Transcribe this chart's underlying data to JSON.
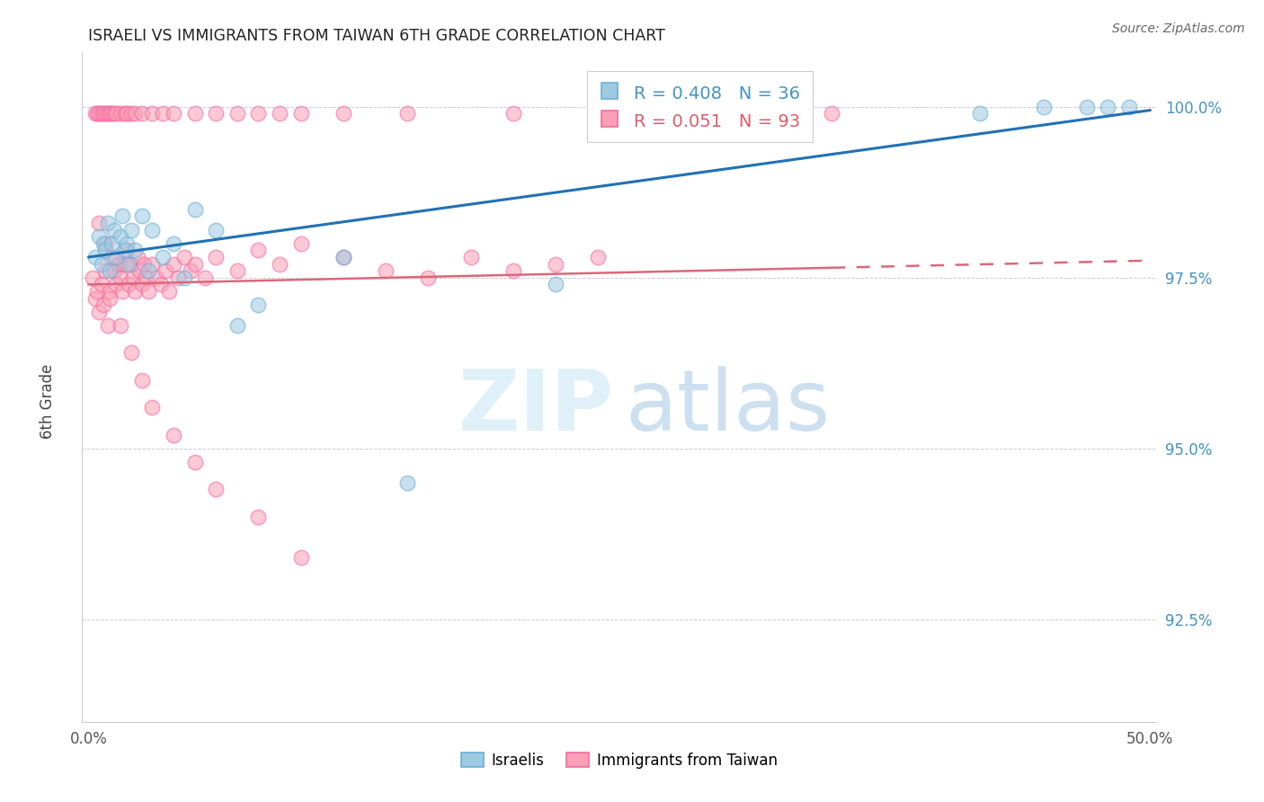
{
  "title": "ISRAELI VS IMMIGRANTS FROM TAIWAN 6TH GRADE CORRELATION CHART",
  "source": "Source: ZipAtlas.com",
  "ylabel": "6th Grade",
  "ytick_labels": [
    "100.0%",
    "97.5%",
    "95.0%",
    "92.5%"
  ],
  "ytick_values": [
    1.0,
    0.975,
    0.95,
    0.925
  ],
  "xmin": 0.0,
  "xmax": 0.5,
  "ymin": 0.91,
  "ymax": 1.008,
  "legend_blue_R": "0.408",
  "legend_blue_N": "36",
  "legend_pink_R": "0.051",
  "legend_pink_N": "93",
  "blue_scatter_color": "#9ecae1",
  "blue_edge_color": "#6baed6",
  "pink_scatter_color": "#fa9fb5",
  "pink_edge_color": "#f768a1",
  "blue_line_color": "#2171b5",
  "pink_line_color": "#d9697a",
  "grid_color": "#cccccc",
  "title_color": "#222222",
  "source_color": "#666666",
  "right_tick_color": "#4292c6",
  "legend_blue_text_color": "#4292c6",
  "legend_pink_text_color": "#e05a6a",
  "israelis_label": "Israelis",
  "taiwan_label": "Immigrants from Taiwan",
  "blue_points_x": [
    0.003,
    0.005,
    0.006,
    0.007,
    0.008,
    0.009,
    0.01,
    0.011,
    0.012,
    0.013,
    0.015,
    0.016,
    0.017,
    0.018,
    0.019,
    0.02,
    0.022,
    0.025,
    0.028,
    0.03,
    0.035,
    0.04,
    0.045,
    0.05,
    0.06,
    0.07,
    0.08,
    0.12,
    0.15,
    0.22,
    0.3,
    0.42,
    0.45,
    0.47,
    0.48,
    0.49
  ],
  "blue_points_y": [
    0.978,
    0.981,
    0.977,
    0.98,
    0.979,
    0.983,
    0.976,
    0.98,
    0.982,
    0.978,
    0.981,
    0.984,
    0.979,
    0.98,
    0.977,
    0.982,
    0.979,
    0.984,
    0.976,
    0.982,
    0.978,
    0.98,
    0.975,
    0.985,
    0.982,
    0.968,
    0.971,
    0.978,
    0.945,
    0.974,
    0.999,
    0.999,
    1.0,
    1.0,
    1.0,
    1.0
  ],
  "pink_points_x": [
    0.002,
    0.003,
    0.004,
    0.005,
    0.006,
    0.007,
    0.008,
    0.009,
    0.01,
    0.011,
    0.012,
    0.013,
    0.014,
    0.015,
    0.016,
    0.017,
    0.018,
    0.019,
    0.02,
    0.021,
    0.022,
    0.023,
    0.024,
    0.025,
    0.026,
    0.027,
    0.028,
    0.03,
    0.032,
    0.034,
    0.036,
    0.038,
    0.04,
    0.042,
    0.045,
    0.048,
    0.05,
    0.055,
    0.06,
    0.07,
    0.08,
    0.09,
    0.1,
    0.12,
    0.14,
    0.16,
    0.18,
    0.2,
    0.22,
    0.24,
    0.003,
    0.004,
    0.005,
    0.006,
    0.007,
    0.008,
    0.009,
    0.01,
    0.011,
    0.012,
    0.013,
    0.015,
    0.017,
    0.018,
    0.02,
    0.022,
    0.025,
    0.03,
    0.035,
    0.04,
    0.05,
    0.06,
    0.07,
    0.08,
    0.09,
    0.1,
    0.12,
    0.15,
    0.2,
    0.25,
    0.35,
    0.005,
    0.008,
    0.01,
    0.015,
    0.02,
    0.025,
    0.03,
    0.04,
    0.05,
    0.06,
    0.08,
    0.1
  ],
  "pink_points_y": [
    0.975,
    0.972,
    0.973,
    0.97,
    0.974,
    0.971,
    0.976,
    0.968,
    0.973,
    0.978,
    0.976,
    0.974,
    0.977,
    0.975,
    0.973,
    0.977,
    0.979,
    0.974,
    0.977,
    0.975,
    0.973,
    0.978,
    0.976,
    0.974,
    0.977,
    0.975,
    0.973,
    0.977,
    0.975,
    0.974,
    0.976,
    0.973,
    0.977,
    0.975,
    0.978,
    0.976,
    0.977,
    0.975,
    0.978,
    0.976,
    0.979,
    0.977,
    0.98,
    0.978,
    0.976,
    0.975,
    0.978,
    0.976,
    0.977,
    0.978,
    0.999,
    0.999,
    0.999,
    0.999,
    0.999,
    0.999,
    0.999,
    0.999,
    0.999,
    0.999,
    0.999,
    0.999,
    0.999,
    0.999,
    0.999,
    0.999,
    0.999,
    0.999,
    0.999,
    0.999,
    0.999,
    0.999,
    0.999,
    0.999,
    0.999,
    0.999,
    0.999,
    0.999,
    0.999,
    0.999,
    0.999,
    0.983,
    0.98,
    0.972,
    0.968,
    0.964,
    0.96,
    0.956,
    0.952,
    0.948,
    0.944,
    0.94,
    0.934
  ]
}
